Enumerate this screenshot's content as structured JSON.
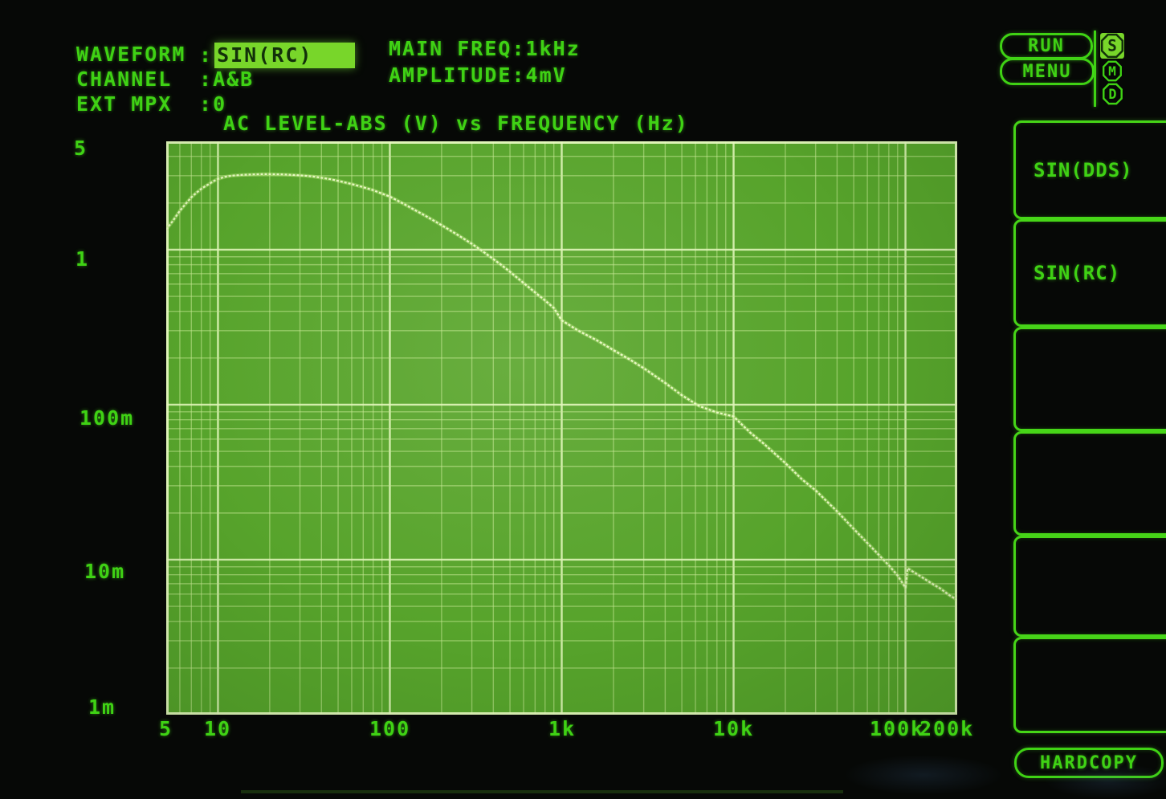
{
  "colon": ":",
  "header": {
    "fields": [
      {
        "label": "WAVEFORM",
        "value": "SIN(RC)",
        "highlighted": true
      },
      {
        "label": "CHANNEL",
        "value": "A&B",
        "highlighted": false
      },
      {
        "label": "EXT MPX",
        "value": "0",
        "highlighted": false
      }
    ],
    "right_fields": [
      {
        "label": "MAIN FREQ",
        "value": "1kHz"
      },
      {
        "label": "AMPLITUDE",
        "value": "4mV"
      }
    ]
  },
  "buttons": {
    "run": "RUN",
    "menu": "MENU",
    "hardcopy": "HARDCOPY"
  },
  "indicators": [
    {
      "label": "S",
      "active": true
    },
    {
      "label": "M",
      "active": false
    },
    {
      "label": "D",
      "active": false
    }
  ],
  "side_menu": {
    "items": [
      {
        "label": "SIN(DDS)"
      },
      {
        "label": "SIN(RC)"
      },
      {
        "label": ""
      },
      {
        "label": ""
      },
      {
        "label": ""
      },
      {
        "label": ""
      }
    ]
  },
  "colors": {
    "phosphor_text": "#3fd214",
    "highlight_fill": "#78d62a",
    "highlight_text": "#12300a",
    "plot_background": "#58a52c",
    "grid_minor": "#9ad45f",
    "grid_major": "#d2eda0",
    "trace": "#eaf9c5"
  },
  "chart_data": {
    "type": "line",
    "title": "AC LEVEL-ABS (V) vs FREQUENCY (Hz)",
    "x_axis": {
      "label": "FREQUENCY (Hz)",
      "scale": "log",
      "min": 5,
      "max": 200000,
      "tick_values": [
        5,
        10,
        100,
        1000,
        10000,
        100000,
        200000
      ],
      "tick_labels": [
        "5",
        "10",
        "100",
        "1k",
        "10k",
        "100k",
        "200k"
      ]
    },
    "y_axis": {
      "label": "AC LEVEL-ABS (V)",
      "scale": "log",
      "min": 0.001,
      "max": 5,
      "tick_values": [
        5,
        1,
        0.1,
        0.01,
        0.001
      ],
      "tick_labels": [
        "5",
        "1",
        "100m",
        "10m",
        "1m"
      ]
    },
    "grid": "log-log, minor lines each 1-9 step per decade, major lines at decades",
    "series": [
      {
        "name": "AC LEVEL-ABS",
        "points": [
          [
            5,
            1.35
          ],
          [
            5.5,
            1.55
          ],
          [
            6,
            1.78
          ],
          [
            6.5,
            1.98
          ],
          [
            7,
            2.18
          ],
          [
            7.5,
            2.33
          ],
          [
            8,
            2.47
          ],
          [
            8.5,
            2.58
          ],
          [
            9,
            2.68
          ],
          [
            9.5,
            2.78
          ],
          [
            10,
            2.86
          ],
          [
            11,
            2.95
          ],
          [
            12,
            3.0
          ],
          [
            14,
            3.04
          ],
          [
            16,
            3.06
          ],
          [
            18,
            3.07
          ],
          [
            20,
            3.07
          ],
          [
            24,
            3.06
          ],
          [
            28,
            3.03
          ],
          [
            32,
            3.0
          ],
          [
            36,
            2.96
          ],
          [
            40,
            2.91
          ],
          [
            45,
            2.85
          ],
          [
            50,
            2.78
          ],
          [
            60,
            2.65
          ],
          [
            70,
            2.53
          ],
          [
            80,
            2.42
          ],
          [
            90,
            2.3
          ],
          [
            100,
            2.2
          ],
          [
            120,
            1.98
          ],
          [
            140,
            1.8
          ],
          [
            160,
            1.66
          ],
          [
            180,
            1.54
          ],
          [
            200,
            1.44
          ],
          [
            250,
            1.24
          ],
          [
            300,
            1.09
          ],
          [
            350,
            0.97
          ],
          [
            400,
            0.87
          ],
          [
            450,
            0.79
          ],
          [
            500,
            0.72
          ],
          [
            600,
            0.61
          ],
          [
            700,
            0.53
          ],
          [
            800,
            0.47
          ],
          [
            900,
            0.42
          ],
          [
            1000,
            0.35
          ],
          [
            1250,
            0.3
          ],
          [
            1600,
            0.26
          ],
          [
            2000,
            0.225
          ],
          [
            2500,
            0.195
          ],
          [
            3000,
            0.172
          ],
          [
            4000,
            0.138
          ],
          [
            5000,
            0.115
          ],
          [
            6300,
            0.098
          ],
          [
            8000,
            0.089
          ],
          [
            10000,
            0.084
          ],
          [
            12500,
            0.066
          ],
          [
            15000,
            0.056
          ],
          [
            20000,
            0.042
          ],
          [
            25000,
            0.033
          ],
          [
            30000,
            0.028
          ],
          [
            40000,
            0.0205
          ],
          [
            50000,
            0.0158
          ],
          [
            65000,
            0.0117
          ],
          [
            80000,
            0.0092
          ],
          [
            90000,
            0.0079
          ],
          [
            95000,
            0.0072
          ],
          [
            100000,
            0.0066
          ],
          [
            103000,
            0.0088
          ],
          [
            110000,
            0.0084
          ],
          [
            125000,
            0.0077
          ],
          [
            140000,
            0.0071
          ],
          [
            160000,
            0.0065
          ],
          [
            180000,
            0.0059
          ],
          [
            200000,
            0.0055
          ]
        ]
      }
    ]
  }
}
